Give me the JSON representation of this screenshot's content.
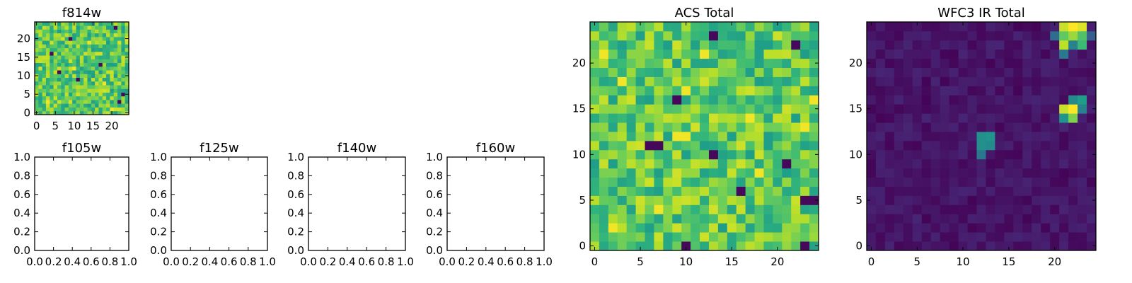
{
  "chart_data": [
    {
      "type": "heatmap",
      "title": "f814w",
      "colormap": "viridis",
      "grid_size": [
        25,
        25
      ],
      "x_ticks": [
        "0",
        "5",
        "10",
        "15",
        "20"
      ],
      "y_ticks": [
        "0",
        "5",
        "10",
        "15",
        "20"
      ],
      "xlim": [
        -0.5,
        24.5
      ],
      "ylim": [
        -0.5,
        24.5
      ],
      "values_note": "random-looking field, mostly mid-to-high normalized intensity (0.55-0.95) with a few dark pixels",
      "dark_pixels": [
        [
          6,
          11
        ],
        [
          11,
          9
        ],
        [
          17,
          13
        ],
        [
          9,
          20
        ],
        [
          23,
          5
        ],
        [
          22,
          3
        ],
        [
          4,
          16
        ],
        [
          21,
          23
        ]
      ],
      "bright_pixels": [
        [
          18,
          8
        ],
        [
          3,
          3
        ],
        [
          14,
          19
        ],
        [
          24,
          20
        ],
        [
          10,
          12
        ],
        [
          20,
          1
        ]
      ]
    },
    {
      "type": "heatmap",
      "title": "f105w",
      "empty": true,
      "x_ticks": [
        "0.0",
        "0.2",
        "0.4",
        "0.6",
        "0.8",
        "1.0"
      ],
      "y_ticks": [
        "0.0",
        "0.2",
        "0.4",
        "0.6",
        "0.8",
        "1.0"
      ],
      "xlim": [
        0,
        1
      ],
      "ylim": [
        0,
        1
      ]
    },
    {
      "type": "heatmap",
      "title": "f125w",
      "empty": true,
      "x_ticks": [
        "0.0",
        "0.2",
        "0.4",
        "0.6",
        "0.8",
        "1.0"
      ],
      "y_ticks": [
        "0.0",
        "0.2",
        "0.4",
        "0.6",
        "0.8",
        "1.0"
      ],
      "xlim": [
        0,
        1
      ],
      "ylim": [
        0,
        1
      ]
    },
    {
      "type": "heatmap",
      "title": "f140w",
      "empty": true,
      "x_ticks": [
        "0.0",
        "0.2",
        "0.4",
        "0.6",
        "0.8",
        "1.0"
      ],
      "y_ticks": [
        "0.0",
        "0.2",
        "0.4",
        "0.6",
        "0.8",
        "1.0"
      ],
      "xlim": [
        0,
        1
      ],
      "ylim": [
        0,
        1
      ]
    },
    {
      "type": "heatmap",
      "title": "f160w",
      "empty": true,
      "x_ticks": [
        "0.0",
        "0.2",
        "0.4",
        "0.6",
        "0.8",
        "1.0"
      ],
      "y_ticks": [
        "0.0",
        "0.2",
        "0.4",
        "0.6",
        "0.8",
        "1.0"
      ],
      "xlim": [
        0,
        1
      ],
      "ylim": [
        0,
        1
      ]
    },
    {
      "type": "heatmap",
      "title": "ACS Total",
      "colormap": "viridis",
      "grid_size": [
        25,
        25
      ],
      "x_ticks": [
        "0",
        "5",
        "10",
        "15",
        "20"
      ],
      "y_ticks": [
        "0",
        "5",
        "10",
        "15",
        "20"
      ],
      "xlim": [
        -0.5,
        24.5
      ],
      "ylim": [
        -0.5,
        24.5
      ],
      "values_note": "random-looking field, mostly mid-to-high normalized intensity (0.55-0.95) with a few dark pixels",
      "dark_pixels": [
        [
          13,
          23
        ],
        [
          22,
          22
        ],
        [
          9,
          16
        ],
        [
          7,
          11
        ],
        [
          6,
          11
        ],
        [
          13,
          10
        ],
        [
          21,
          9
        ],
        [
          16,
          6
        ],
        [
          23,
          5
        ],
        [
          24,
          5
        ],
        [
          23,
          0
        ],
        [
          10,
          0
        ]
      ],
      "bright_pixels": [
        [
          1,
          21
        ],
        [
          3,
          18
        ],
        [
          10,
          17
        ],
        [
          17,
          14
        ],
        [
          9,
          12
        ],
        [
          10,
          12
        ],
        [
          23,
          13
        ],
        [
          18,
          8
        ],
        [
          2,
          2
        ],
        [
          7,
          4
        ],
        [
          12,
          21
        ],
        [
          24,
          16
        ]
      ]
    },
    {
      "type": "heatmap",
      "title": "WFC3 IR Total",
      "colormap": "viridis",
      "grid_size": [
        25,
        25
      ],
      "x_ticks": [
        "0",
        "5",
        "10",
        "15",
        "20"
      ],
      "y_ticks": [
        "0",
        "5",
        "10",
        "15",
        "20"
      ],
      "xlim": [
        -0.5,
        24.5
      ],
      "ylim": [
        -0.5,
        24.5
      ],
      "values_note": "dark background (0.00-0.10) with bright sources near the top-right and a moderate source near the center",
      "sources": [
        {
          "x": 21,
          "y": 24,
          "v": 0.92
        },
        {
          "x": 22,
          "y": 24,
          "v": 1.0
        },
        {
          "x": 23,
          "y": 24,
          "v": 0.95
        },
        {
          "x": 21,
          "y": 23,
          "v": 0.75
        },
        {
          "x": 22,
          "y": 23,
          "v": 0.85
        },
        {
          "x": 23,
          "y": 23,
          "v": 0.72
        },
        {
          "x": 20,
          "y": 23,
          "v": 0.35
        },
        {
          "x": 24,
          "y": 23,
          "v": 0.3
        },
        {
          "x": 21,
          "y": 22,
          "v": 0.9
        },
        {
          "x": 22,
          "y": 22,
          "v": 0.45
        },
        {
          "x": 23,
          "y": 22,
          "v": 0.68
        },
        {
          "x": 21,
          "y": 21,
          "v": 0.4
        },
        {
          "x": 22,
          "y": 16,
          "v": 0.48
        },
        {
          "x": 23,
          "y": 16,
          "v": 0.55
        },
        {
          "x": 21,
          "y": 15,
          "v": 0.92
        },
        {
          "x": 22,
          "y": 15,
          "v": 1.0
        },
        {
          "x": 23,
          "y": 15,
          "v": 0.45
        },
        {
          "x": 21,
          "y": 14,
          "v": 0.52
        },
        {
          "x": 22,
          "y": 14,
          "v": 0.8
        },
        {
          "x": 12,
          "y": 12,
          "v": 0.5
        },
        {
          "x": 13,
          "y": 12,
          "v": 0.52
        },
        {
          "x": 12,
          "y": 11,
          "v": 0.5
        },
        {
          "x": 13,
          "y": 11,
          "v": 0.48
        },
        {
          "x": 12,
          "y": 10,
          "v": 0.4
        }
      ]
    }
  ]
}
